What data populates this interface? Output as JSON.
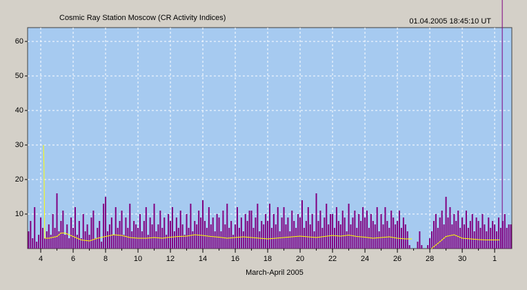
{
  "chart_data": {
    "type": "bar",
    "title": "Cosmic Ray Station Moscow (CR Activity Indices)",
    "timestamp": "01.04.2005 18:45:10 UT",
    "x_label": "March-April 2005",
    "xlim": [
      3.19,
      33.06
    ],
    "ylim": [
      0,
      64
    ],
    "xticks": [
      4,
      6,
      8,
      10,
      12,
      14,
      16,
      18,
      20,
      22,
      24,
      26,
      28,
      30,
      {
        "value": 32,
        "label": "1"
      }
    ],
    "yticks": [
      10,
      20,
      30,
      40,
      50,
      60
    ],
    "grid": true,
    "cursor": 32.47,
    "cursor_color": "#800080",
    "series": [
      {
        "type": "bar",
        "color": "#800080",
        "x": [
          3.25,
          3.375,
          3.5,
          3.625,
          3.75,
          3.875,
          4,
          4.125,
          4.25,
          4.375,
          4.5,
          4.625,
          4.75,
          4.875,
          5,
          5.125,
          5.25,
          5.375,
          5.5,
          5.625,
          5.75,
          5.875,
          6,
          6.125,
          6.25,
          6.375,
          6.5,
          6.625,
          6.75,
          6.875,
          7,
          7.125,
          7.25,
          7.375,
          7.5,
          7.625,
          7.75,
          7.875,
          8,
          8.125,
          8.25,
          8.375,
          8.5,
          8.625,
          8.75,
          8.875,
          9,
          9.125,
          9.25,
          9.375,
          9.5,
          9.625,
          9.75,
          9.875,
          10,
          10.125,
          10.25,
          10.375,
          10.5,
          10.625,
          10.75,
          10.875,
          11,
          11.125,
          11.25,
          11.375,
          11.5,
          11.625,
          11.75,
          11.875,
          12,
          12.125,
          12.25,
          12.375,
          12.5,
          12.625,
          12.75,
          12.875,
          13,
          13.125,
          13.25,
          13.375,
          13.5,
          13.625,
          13.75,
          13.875,
          14,
          14.125,
          14.25,
          14.375,
          14.5,
          14.625,
          14.75,
          14.875,
          15,
          15.125,
          15.25,
          15.375,
          15.5,
          15.625,
          15.75,
          15.875,
          16,
          16.125,
          16.25,
          16.375,
          16.5,
          16.625,
          16.75,
          16.875,
          17,
          17.125,
          17.25,
          17.375,
          17.5,
          17.625,
          17.75,
          17.875,
          18,
          18.125,
          18.25,
          18.375,
          18.5,
          18.625,
          18.75,
          18.875,
          19,
          19.125,
          19.25,
          19.375,
          19.5,
          19.625,
          19.75,
          19.875,
          20,
          20.125,
          20.25,
          20.375,
          20.5,
          20.625,
          20.75,
          20.875,
          21,
          21.125,
          21.25,
          21.375,
          21.5,
          21.625,
          21.75,
          21.875,
          22,
          22.125,
          22.25,
          22.375,
          22.5,
          22.625,
          22.75,
          22.875,
          23,
          23.125,
          23.25,
          23.375,
          23.5,
          23.625,
          23.75,
          23.875,
          24,
          24.125,
          24.25,
          24.375,
          24.5,
          24.625,
          24.75,
          24.875,
          25,
          25.125,
          25.25,
          25.375,
          25.5,
          25.625,
          25.75,
          25.875,
          26,
          26.125,
          26.25,
          26.375,
          26.5,
          26.625,
          26.75,
          26.875,
          27,
          27.125,
          27.25,
          27.375,
          27.5,
          27.625,
          27.75,
          27.875,
          28,
          28.125,
          28.25,
          28.375,
          28.5,
          28.625,
          28.75,
          28.875,
          29,
          29.125,
          29.25,
          29.375,
          29.5,
          29.625,
          29.75,
          29.875,
          30,
          30.125,
          30.25,
          30.375,
          30.5,
          30.625,
          30.75,
          30.875,
          31,
          31.125,
          31.25,
          31.375,
          31.5,
          31.625,
          31.75,
          31.875,
          32,
          32.125,
          32.25,
          32.375,
          32.5,
          32.625,
          32.75,
          32.875,
          33
        ],
        "values": [
          5,
          8,
          3,
          12,
          2,
          4,
          9,
          6,
          3,
          5,
          7,
          4,
          10,
          6,
          16,
          5,
          8,
          11,
          4,
          7,
          3,
          9,
          6,
          12,
          4,
          8,
          3,
          10,
          5,
          7,
          4,
          9,
          11,
          3,
          6,
          8,
          2,
          13,
          15,
          5,
          7,
          9,
          4,
          12,
          6,
          8,
          11,
          4,
          9,
          6,
          13,
          5,
          8,
          7,
          6,
          10,
          5,
          8,
          12,
          4,
          9,
          7,
          13,
          5,
          7,
          11,
          6,
          9,
          4,
          10,
          8,
          12,
          5,
          9,
          6,
          11,
          7,
          4,
          10,
          6,
          13,
          5,
          8,
          7,
          11,
          9,
          14,
          8,
          6,
          12,
          7,
          9,
          5,
          10,
          9,
          5,
          11,
          7,
          13,
          6,
          8,
          4,
          7,
          12,
          6,
          9,
          5,
          10,
          8,
          11,
          11,
          6,
          9,
          13,
          5,
          8,
          7,
          10,
          8,
          13,
          6,
          10,
          7,
          12,
          5,
          9,
          12,
          7,
          9,
          5,
          11,
          8,
          6,
          10,
          9,
          14,
          6,
          8,
          12,
          7,
          10,
          5,
          16,
          8,
          11,
          6,
          9,
          13,
          7,
          10,
          10,
          6,
          12,
          8,
          7,
          11,
          9,
          5,
          13,
          7,
          9,
          11,
          6,
          10,
          8,
          12,
          9,
          11,
          6,
          10,
          8,
          7,
          12,
          5,
          10,
          7,
          12,
          8,
          6,
          11,
          9,
          7,
          8,
          11,
          6,
          9,
          7,
          5,
          1,
          0,
          0,
          0,
          2,
          5,
          1,
          0,
          0,
          1,
          3,
          5,
          8,
          10,
          6,
          9,
          11,
          7,
          15,
          9,
          12,
          7,
          10,
          8,
          11,
          6,
          9,
          7,
          11,
          6,
          8,
          10,
          5,
          9,
          8,
          6,
          10,
          7,
          5,
          9,
          6,
          8,
          7,
          5,
          9,
          6,
          8,
          10,
          6,
          7,
          7
        ]
      },
      {
        "type": "line",
        "color": "#ffff00",
        "x": [
          4.17,
          4.2,
          4.25,
          4.5,
          5,
          5.25,
          5.5,
          6,
          6.5,
          7,
          7.5,
          8,
          8.5,
          9,
          9.5,
          10,
          10.5,
          11,
          11.5,
          12,
          12.5,
          13,
          13.5,
          14,
          14.5,
          15,
          15.5,
          16,
          16.5,
          17,
          17.5,
          18,
          18.5,
          19,
          19.5,
          20,
          20.5,
          21,
          21.5,
          22,
          22.5,
          23,
          23.5,
          24,
          24.5,
          25,
          25.5,
          26,
          26.5,
          26.9,
          27.2,
          28.1,
          28.5,
          29,
          29.5,
          30,
          30.5,
          31,
          31.5,
          32,
          32.3
        ],
        "values": [
          30,
          24,
          3,
          3,
          3.5,
          4.5,
          4.5,
          3.5,
          2.5,
          2.2,
          3,
          3.5,
          4,
          3.8,
          3.2,
          3,
          3,
          3.2,
          3,
          3.3,
          3.5,
          3.6,
          4,
          3.8,
          3.5,
          3.3,
          3,
          3.2,
          3.4,
          3.2,
          3,
          2.8,
          3,
          3.2,
          3.4,
          3.6,
          3.4,
          3.2,
          3.5,
          3.8,
          3.6,
          3.9,
          3.5,
          3.3,
          3,
          3.2,
          3.4,
          3,
          2.8,
          2.8,
          null,
          0,
          1.5,
          3.5,
          4,
          3,
          2.8,
          2.6,
          2.5,
          2.5,
          2.5
        ]
      }
    ]
  }
}
